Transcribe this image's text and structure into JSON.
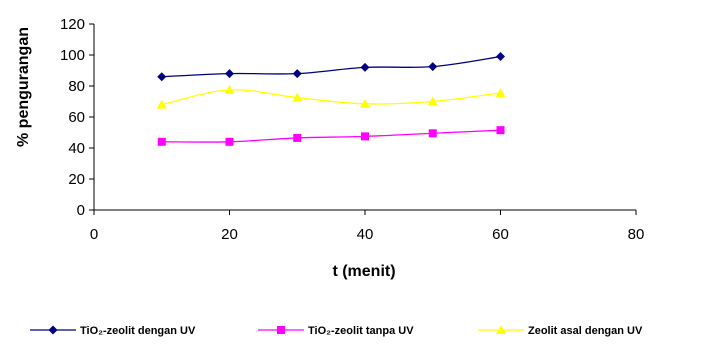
{
  "chart_data": {
    "type": "line",
    "xlabel": "t (menit)",
    "ylabel": "% pengurangan",
    "xlim": [
      0,
      80
    ],
    "ylim": [
      0,
      120
    ],
    "xticks": [
      0,
      20,
      40,
      60,
      80
    ],
    "yticks": [
      0,
      20,
      40,
      60,
      80,
      100,
      120
    ],
    "grid": false,
    "legend_position": "bottom",
    "series": [
      {
        "name": "TiO₂-zeolit dengan UV",
        "color": "#000080",
        "marker": "diamond",
        "x": [
          10,
          20,
          30,
          40,
          50,
          60
        ],
        "y": [
          86,
          88,
          88,
          92,
          92.5,
          99
        ]
      },
      {
        "name": "TiO₂-zeolit tanpa UV",
        "color": "#ff00ff",
        "marker": "square",
        "x": [
          10,
          20,
          30,
          40,
          50,
          60
        ],
        "y": [
          44,
          44,
          46.5,
          47.5,
          49.5,
          51.5
        ]
      },
      {
        "name": "Zeolit asal dengan UV",
        "color": "#ffff00",
        "marker": "triangle",
        "x": [
          10,
          20,
          30,
          40,
          50,
          60
        ],
        "y": [
          68,
          77.5,
          72.5,
          68.5,
          70,
          75.5
        ]
      }
    ]
  }
}
